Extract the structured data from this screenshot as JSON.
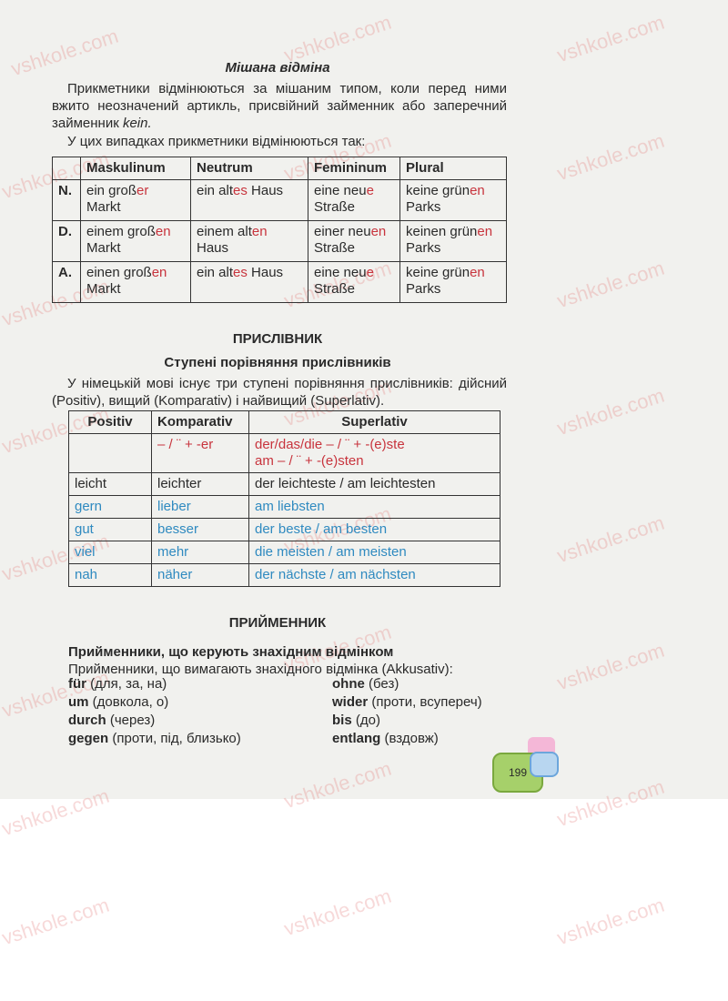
{
  "watermark": "vshkole.com",
  "section_mixed": {
    "title": "Мішана відміна",
    "paragraph_pre": "Прикметники відмінюються за мішаним типом, коли перед ними вжито неозначений артикль, присвійний займенник або заперечний займенник ",
    "paragraph_italic": "kein.",
    "intro": "У цих випадках прикметники відмінюються так:",
    "table": {
      "headers": [
        "",
        "Maskulinum",
        "Neutrum",
        "Femininum",
        "Plural"
      ],
      "rows": [
        {
          "case": "N.",
          "cells": [
            {
              "stem": "ein groß",
              "end": "er",
              "rest": " Markt"
            },
            {
              "stem": "ein alt",
              "end": "es",
              "rest": " Haus"
            },
            {
              "stem": "eine neu",
              "end": "e",
              "rest": " Straße"
            },
            {
              "stem": "keine grün",
              "end": "en",
              "rest": " Parks"
            }
          ]
        },
        {
          "case": "D.",
          "cells": [
            {
              "stem": "einem groß",
              "end": "en",
              "rest": " Markt"
            },
            {
              "stem": "einem alt",
              "end": "en",
              "rest": " Haus"
            },
            {
              "stem": "einer neu",
              "end": "en",
              "rest": " Straße"
            },
            {
              "stem": "keinen grün",
              "end": "en",
              "rest": " Parks"
            }
          ]
        },
        {
          "case": "A.",
          "cells": [
            {
              "stem": "einen groß",
              "end": "en",
              "rest": " Markt"
            },
            {
              "stem": "ein alt",
              "end": "es",
              "rest": " Haus"
            },
            {
              "stem": "eine neu",
              "end": "e",
              "rest": " Straße"
            },
            {
              "stem": "keine grün",
              "end": "en",
              "rest": " Parks"
            }
          ]
        }
      ]
    }
  },
  "section_adverb": {
    "title": "ПРИСЛІВНИК",
    "subtitle": "Ступені порівняння прислівників",
    "paragraph": "У німецькій мові існує три ступені порівняння прислівників: дійсний (Positiv), вищий  (Komparativ) і найвищий (Superlativ).",
    "table": {
      "headers": [
        "Positiv",
        "Komparativ",
        "Superlativ"
      ],
      "formula": {
        "positiv": "",
        "komparativ": "– / ¨ + -er",
        "superlativ_1": "der/das/die  – / ¨ + -(e)ste",
        "superlativ_2": "am  – / ¨  + -(e)sten"
      },
      "rows": [
        {
          "positiv": "leicht",
          "komparativ": "leichter",
          "superlativ": "der leichteste / am leichtesten",
          "irregular": false
        },
        {
          "positiv": "gern",
          "komparativ": "lieber",
          "superlativ": "am liebsten",
          "irregular": true
        },
        {
          "positiv": "gut",
          "komparativ": "besser",
          "superlativ": "der beste / am besten",
          "irregular": true
        },
        {
          "positiv": "viel",
          "komparativ": "mehr",
          "superlativ": "die meisten / am meisten",
          "irregular": true
        },
        {
          "positiv": "nah",
          "komparativ": "näher",
          "superlativ": "der nächste / am nächsten",
          "irregular": true
        }
      ]
    }
  },
  "section_preposition": {
    "title": "ПРИЙМЕННИК",
    "subtitle": "Прийменники, що керують знахідним відмінком",
    "intro": "Прийменники, що вимагають знахідного відмінка (Akkusativ):",
    "left": [
      {
        "word": "für",
        "meaning": " (для, за, на)"
      },
      {
        "word": "um",
        "meaning": " (довкола, о)"
      },
      {
        "word": "durch",
        "meaning": " (через)"
      },
      {
        "word": "gegen",
        "meaning": " (проти, під, близько)"
      }
    ],
    "right": [
      {
        "word": "ohne",
        "meaning": " (без)"
      },
      {
        "word": "wider",
        "meaning": " (проти, всупереч)"
      },
      {
        "word": "bis",
        "meaning": " (до)"
      },
      {
        "word": "entlang",
        "meaning": " (вздовж)"
      }
    ]
  },
  "page_number": "199",
  "colors": {
    "ending_red": "#c8343d",
    "irregular_blue": "#2f8ac0",
    "page_tab_green": "#a6d06a"
  }
}
